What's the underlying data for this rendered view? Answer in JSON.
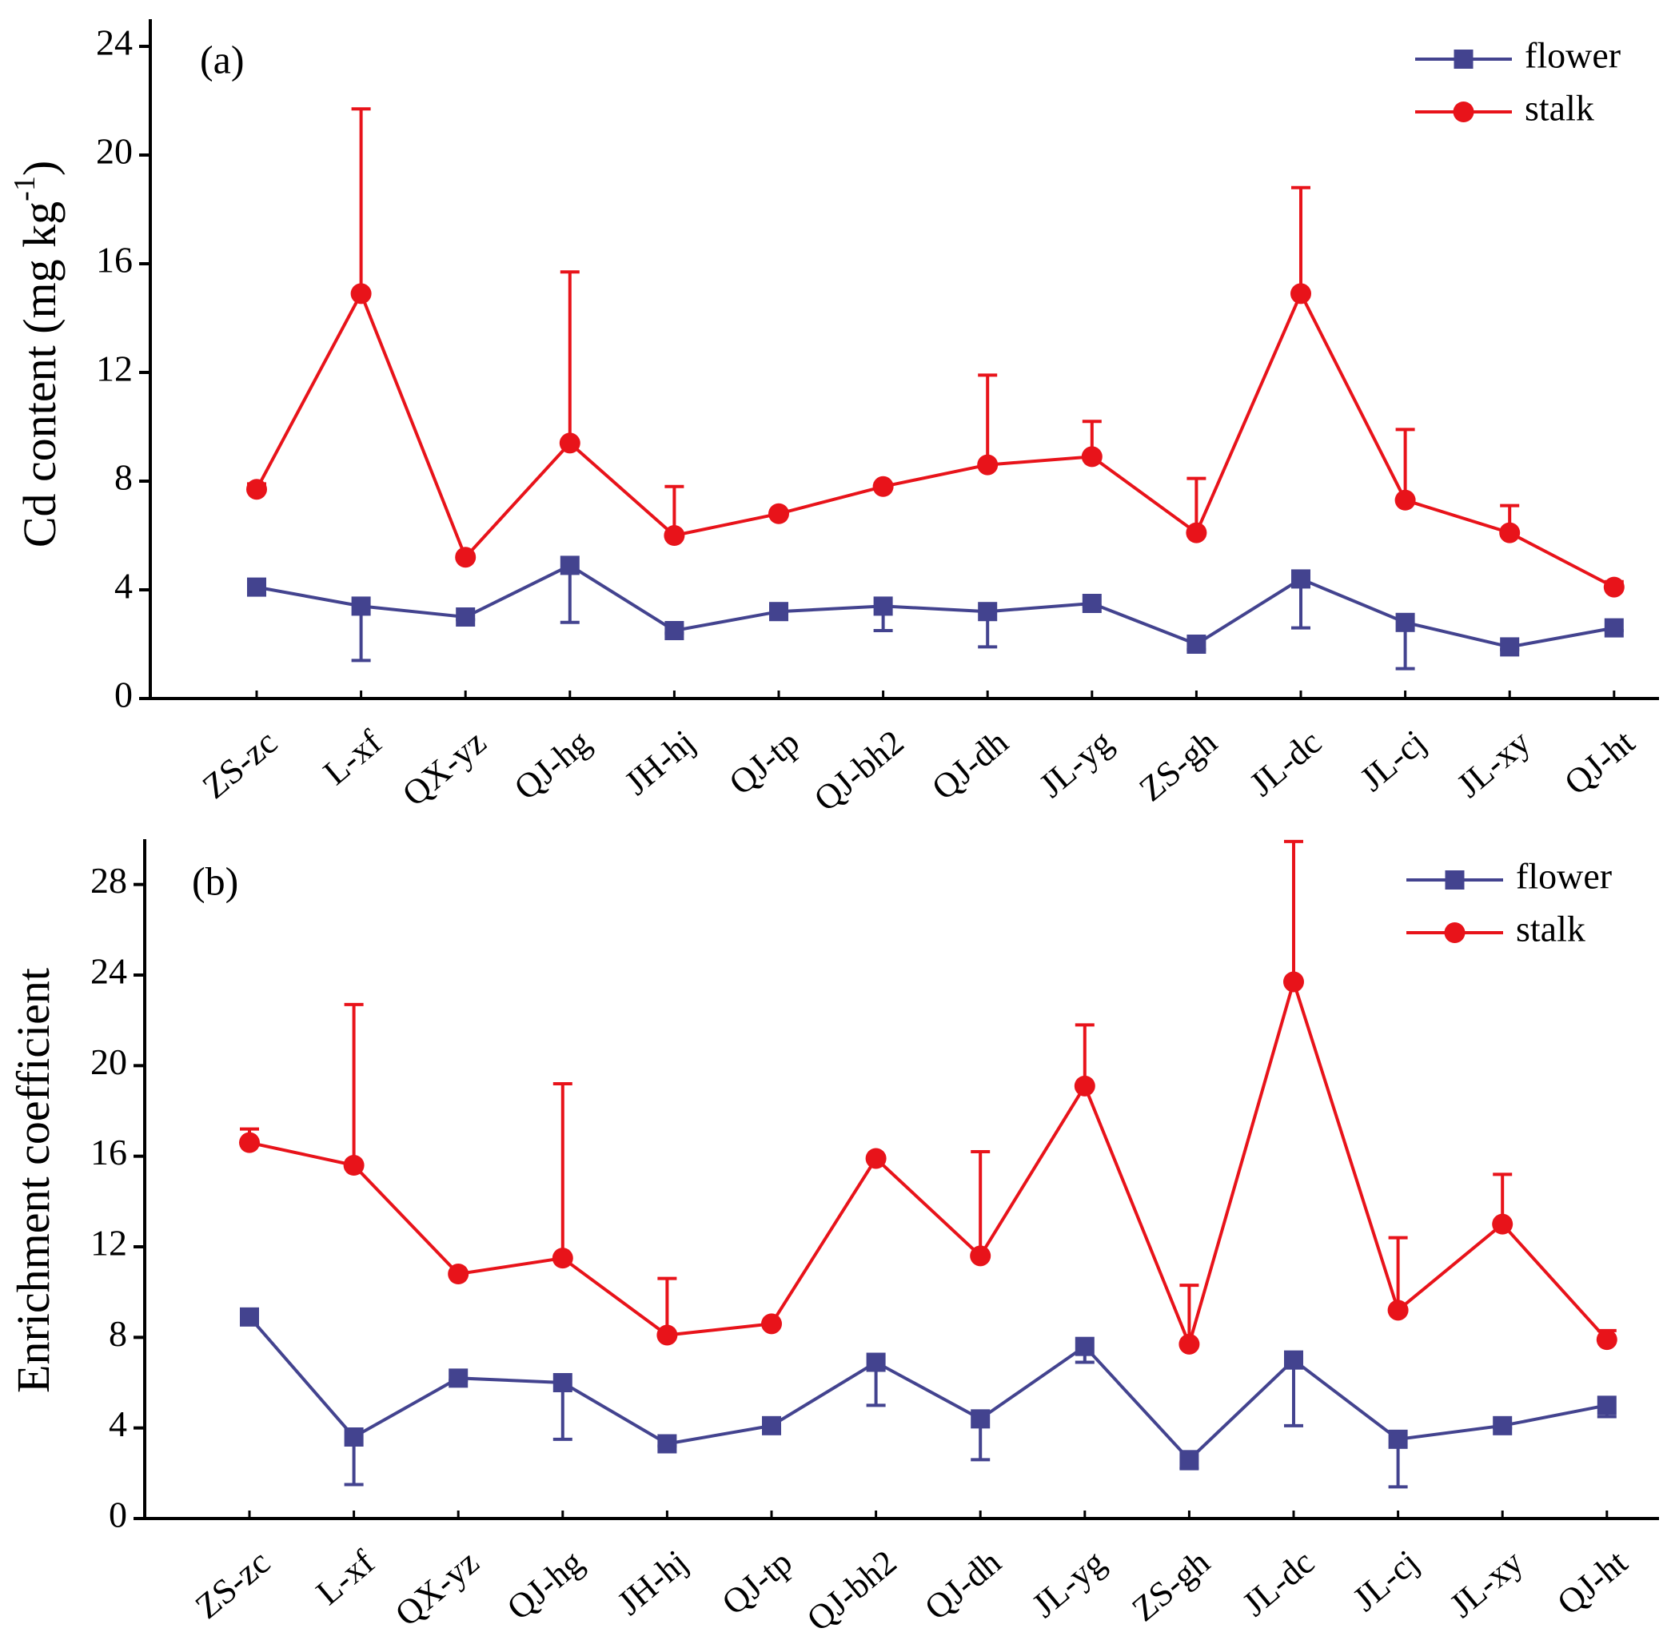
{
  "chart_data": [
    {
      "type": "line",
      "annotation": "(a)",
      "y_label": "Cd content (mg kg",
      "y_label_sup": "-1",
      "y_label_end": ")",
      "categories": [
        "ZS-zc",
        "L-xf",
        "QX-yz",
        "QJ-hg",
        "JH-hj",
        "QJ-tp",
        "QJ-bh2",
        "QJ-dh",
        "JL-yg",
        "ZS-gh",
        "JL-dc",
        "JL-cj",
        "JL-xy",
        "QJ-ht"
      ],
      "ylim": [
        0,
        25
      ],
      "yticks": [
        0,
        4,
        8,
        12,
        16,
        20,
        24
      ],
      "legend": "upper right",
      "series": [
        {
          "name": "flower",
          "color": "#43438f",
          "marker": "square",
          "error_direction": "down",
          "values": [
            4.1,
            3.4,
            3.0,
            4.9,
            2.5,
            3.2,
            3.4,
            3.2,
            3.5,
            2.0,
            4.4,
            2.8,
            1.9,
            2.6
          ],
          "errors": [
            0.1,
            2.0,
            0.1,
            2.1,
            0.1,
            0.1,
            0.9,
            1.3,
            0.1,
            0.2,
            1.8,
            1.7,
            0.1,
            0.1
          ]
        },
        {
          "name": "stalk",
          "color": "#e8131a",
          "marker": "circle",
          "error_direction": "up",
          "values": [
            7.7,
            14.9,
            5.2,
            9.4,
            6.0,
            6.8,
            7.8,
            8.6,
            8.9,
            6.1,
            14.9,
            7.3,
            6.1,
            4.1
          ],
          "errors": [
            0.2,
            6.8,
            0.1,
            6.3,
            1.8,
            0.1,
            0.1,
            3.3,
            1.3,
            2.0,
            3.9,
            2.6,
            1.0,
            0.2
          ]
        }
      ]
    },
    {
      "type": "line",
      "annotation": "(b)",
      "y_label": "Enrichment coefficient",
      "categories": [
        "ZS-zc",
        "L-xf",
        "QX-yz",
        "QJ-hg",
        "JH-hj",
        "QJ-tp",
        "QJ-bh2",
        "QJ-dh",
        "JL-yg",
        "ZS-gh",
        "JL-dc",
        "JL-cj",
        "JL-xy",
        "QJ-ht"
      ],
      "ylim": [
        0,
        30
      ],
      "yticks": [
        0,
        4,
        8,
        12,
        16,
        20,
        24,
        28
      ],
      "legend": "upper right",
      "series": [
        {
          "name": "flower",
          "color": "#43438f",
          "marker": "square",
          "error_direction": "down",
          "values": [
            8.9,
            3.6,
            6.2,
            6.0,
            3.3,
            4.1,
            6.9,
            4.4,
            7.6,
            2.6,
            7.0,
            3.5,
            4.1,
            5.0
          ],
          "errors": [
            0.1,
            2.1,
            0.1,
            2.5,
            0.1,
            0.1,
            1.9,
            1.8,
            0.7,
            0.4,
            2.9,
            2.1,
            0.1,
            0.5
          ]
        },
        {
          "name": "stalk",
          "color": "#e8131a",
          "marker": "circle",
          "error_direction": "up",
          "values": [
            16.6,
            15.6,
            10.8,
            11.5,
            8.1,
            8.6,
            15.9,
            11.6,
            19.1,
            7.7,
            23.7,
            9.2,
            13.0,
            7.9
          ],
          "errors": [
            0.6,
            7.1,
            0.1,
            7.7,
            2.5,
            0.1,
            0.1,
            4.6,
            2.7,
            2.6,
            6.2,
            3.2,
            2.2,
            0.4
          ]
        }
      ]
    }
  ]
}
